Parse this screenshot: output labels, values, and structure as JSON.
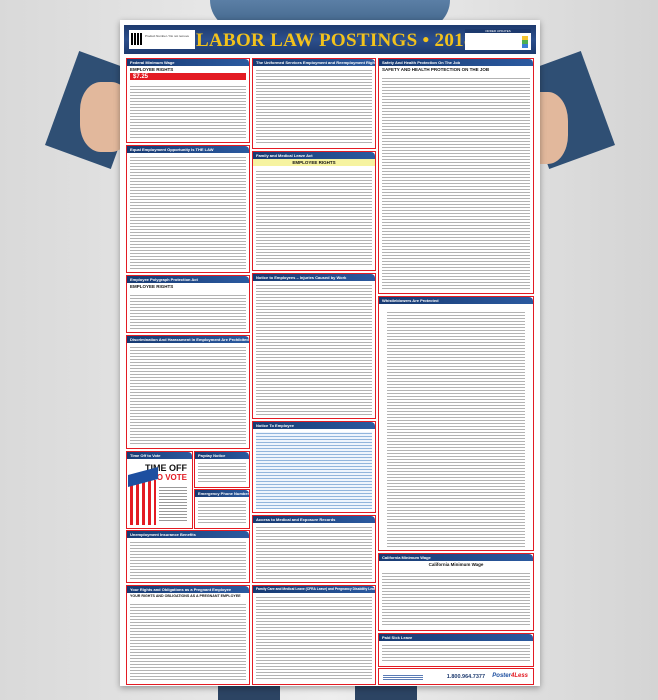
{
  "poster": {
    "title": "LABOR LAW POSTINGS • 2018",
    "product_box": "Product Number / Do not remove",
    "info_box": "ORDER UPDATES",
    "panels": {
      "federal_minimum_wage": {
        "title": "Federal Minimum Wage",
        "subtitle": "EMPLOYEE RIGHTS",
        "wage": "$7.25"
      },
      "uniformed_services": {
        "title": "The Uniformed Services Employment and Reemployment Rights Act"
      },
      "safety_health": {
        "title": "Safety And Health Protection On The Job",
        "subtitle": "SAFETY AND HEALTH PROTECTION ON THE JOB"
      },
      "eeo": {
        "title": "Equal Employment Opportunity Is THE LAW"
      },
      "fmla": {
        "title": "Family and Medical Leave Act",
        "subtitle": "EMPLOYEE RIGHTS"
      },
      "polygraph": {
        "title": "Employee Polygraph Protection Act",
        "subtitle": "EMPLOYEE RIGHTS"
      },
      "injuries": {
        "title": "Notice to Employees – Injuries Caused by Work"
      },
      "whistleblowers": {
        "title": "Whistleblowers Are Protected"
      },
      "discrimination": {
        "title": "Discrimination And Harassment In Employment Are Prohibited By Law"
      },
      "time_off_vote": {
        "title": "Time Off to Vote",
        "line1": "TIME OFF",
        "line2": "TO VOTE"
      },
      "payday": {
        "title": "Payday Notice"
      },
      "emergency": {
        "title": "Emergency Phone Numbers"
      },
      "notice_employee": {
        "title": "Notice To Employee"
      },
      "unemployment": {
        "title": "Unemployment Insurance Benefits"
      },
      "medical_records": {
        "title": "Access to Medical and Exposure Records"
      },
      "ca_minimum_wage": {
        "title": "California Minimum Wage",
        "subtitle": "California Minimum Wage"
      },
      "pregnant": {
        "title": "Your Rights and Obligations as a Pregnant Employee",
        "subtitle": "YOUR RIGHTS AND OBLIGATIONS AS A PREGNANT EMPLOYEE"
      },
      "cfra": {
        "title": "Family Care and Medical Leave (CFRA Leave) and Pregnancy Disability Leave"
      },
      "paid_sick": {
        "title": "Paid Sick Leave"
      }
    },
    "footer": {
      "phone": "1.800.964.7377",
      "brand": "Poster",
      "brand_accent": "4Less"
    }
  }
}
